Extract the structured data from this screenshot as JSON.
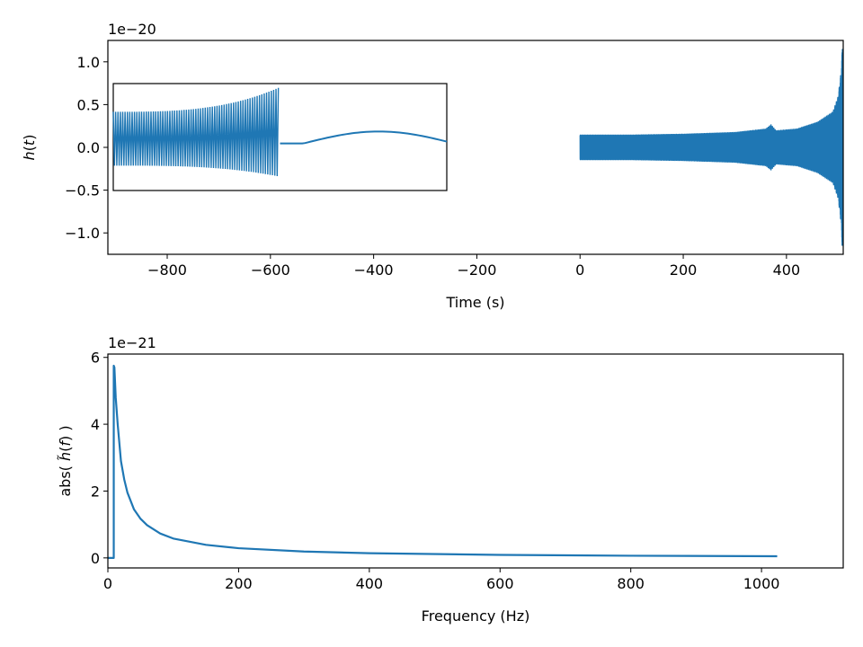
{
  "colors": {
    "series": "#1f77b4",
    "axes": "#000000",
    "background": "#ffffff"
  },
  "chart_data": [
    {
      "type": "line",
      "panel": "top",
      "xlabel": "Time (s)",
      "ylabel": "h(t)",
      "offset_text": "1e−20",
      "xlim": [
        -915,
        510
      ],
      "ylim": [
        -1.25,
        1.25
      ],
      "x_ticks": [
        -800,
        -600,
        -400,
        -200,
        0,
        200,
        400
      ],
      "x_tick_labels": [
        "−800",
        "−600",
        "−400",
        "−200",
        "0",
        "200",
        "400"
      ],
      "y_ticks": [
        -1.0,
        -0.5,
        0.0,
        0.5,
        1.0
      ],
      "y_tick_labels": [
        "−1.0",
        "−0.5",
        "0.0",
        "0.5",
        "1.0"
      ],
      "grid": false,
      "series": [
        {
          "description_points": [
            [
              0,
              0.15
            ],
            [
              100,
              0.15
            ],
            [
              200,
              0.16
            ],
            [
              300,
              0.18
            ],
            [
              360,
              0.22
            ],
            [
              370,
              0.27
            ],
            [
              380,
              0.2
            ],
            [
              420,
              0.22
            ],
            [
              460,
              0.3
            ],
            [
              490,
              0.42
            ],
            [
              500,
              0.6
            ],
            [
              505,
              0.85
            ],
            [
              508,
              1.15
            ]
          ],
          "note_x_range": [
            0,
            508
          ]
        }
      ],
      "inset": {
        "xlim": [
          0,
          1
        ],
        "ylim": [
          -0.5,
          0.75
        ],
        "points": [
          [
            0,
            0.0
          ],
          [
            0.49,
            0.0
          ],
          [
            0.5,
            0.05
          ],
          [
            0.55,
            0.05
          ],
          [
            0.75,
            0.19
          ],
          [
            1.0,
            0.06
          ]
        ]
      }
    },
    {
      "type": "line",
      "panel": "bottom",
      "xlabel": "Frequency (Hz)",
      "ylabel": "abs( h̃(f) )",
      "offset_text": "1e−21",
      "xlim": [
        0,
        1125
      ],
      "ylim": [
        -0.3,
        6.1
      ],
      "x_ticks": [
        0,
        200,
        400,
        600,
        800,
        1000
      ],
      "x_tick_labels": [
        "0",
        "200",
        "400",
        "600",
        "800",
        "1000"
      ],
      "y_ticks": [
        0,
        2,
        4,
        6
      ],
      "y_tick_labels": [
        "0",
        "2",
        "4",
        "6"
      ],
      "grid": false,
      "series": [
        {
          "x": [
            0,
            9,
            9,
            10,
            12,
            15,
            20,
            25,
            30,
            40,
            50,
            60,
            80,
            100,
            150,
            200,
            300,
            400,
            600,
            800,
            1024
          ],
          "y": [
            0,
            0,
            5.75,
            5.7,
            4.8,
            4.0,
            2.9,
            2.35,
            1.95,
            1.45,
            1.17,
            0.98,
            0.73,
            0.58,
            0.39,
            0.29,
            0.19,
            0.14,
            0.09,
            0.065,
            0.05
          ]
        }
      ]
    }
  ]
}
